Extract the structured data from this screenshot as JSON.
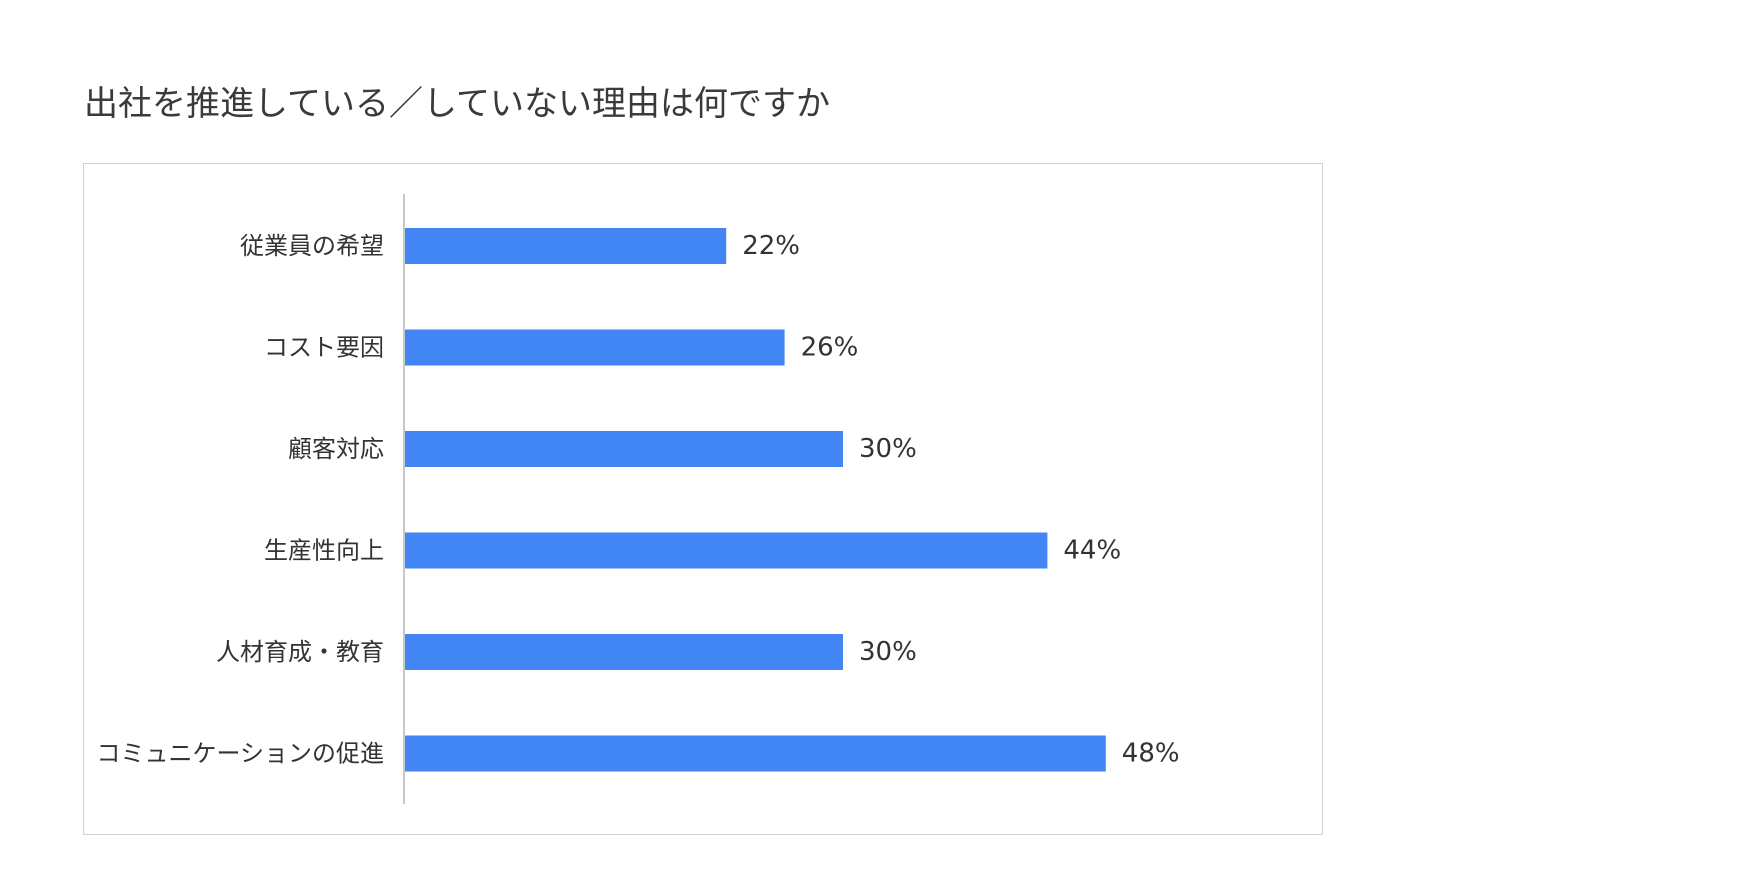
{
  "title": "出社を推進している／していない理由は何ですか",
  "chart_data": {
    "type": "bar",
    "orientation": "horizontal",
    "categories": [
      "従業員の希望",
      "コスト要因",
      "顧客対応",
      "生産性向上",
      "人材育成・教育",
      "コミュニケーションの促進"
    ],
    "values": [
      22,
      26,
      30,
      44,
      30,
      48
    ],
    "value_labels": [
      "22%",
      "26%",
      "30%",
      "44%",
      "30%",
      "48%"
    ],
    "unit": "%",
    "xlim": [
      0,
      100
    ],
    "grid": false,
    "legend": "none",
    "bar_color": "#4285f4",
    "axis_color": "#c8c8c8"
  }
}
